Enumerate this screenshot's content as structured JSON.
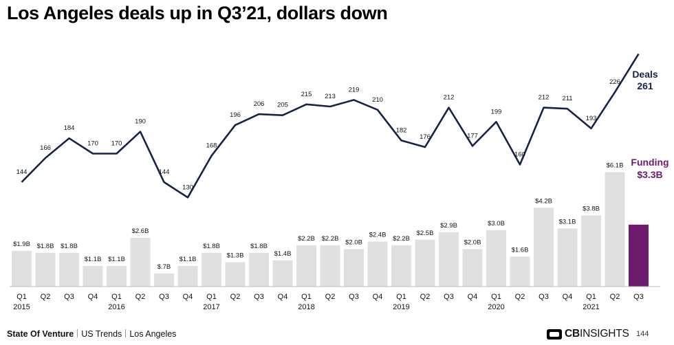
{
  "title": "Los Angeles deals up in Q3’21, dollars down",
  "footer": {
    "report": "State Of Venture",
    "section": "US Trends",
    "region": "Los Angeles"
  },
  "logo": {
    "icon": "cb-insights-logo-icon",
    "cb": "CB",
    "insights": "INSIGHTS"
  },
  "page_number": "144",
  "colors": {
    "bar": "#e0e0e0",
    "highlight_bar": "#6d1a6e",
    "line": "#15234b",
    "text": "#111111"
  },
  "chart_data": {
    "type": "bar+line",
    "categories": [
      "Q1",
      "Q2",
      "Q3",
      "Q4",
      "Q1",
      "Q2",
      "Q3",
      "Q4",
      "Q1",
      "Q2",
      "Q3",
      "Q4",
      "Q1",
      "Q2",
      "Q3",
      "Q4",
      "Q1",
      "Q2",
      "Q3",
      "Q4",
      "Q1",
      "Q2",
      "Q3",
      "Q4",
      "Q1",
      "Q2",
      "Q3"
    ],
    "years": [
      {
        "index": 0,
        "label": "2015"
      },
      {
        "index": 4,
        "label": "2016"
      },
      {
        "index": 8,
        "label": "2017"
      },
      {
        "index": 12,
        "label": "2018"
      },
      {
        "index": 16,
        "label": "2019"
      },
      {
        "index": 20,
        "label": "2020"
      },
      {
        "index": 24,
        "label": "2021"
      }
    ],
    "funding": {
      "values": [
        1.9,
        1.8,
        1.8,
        1.1,
        1.1,
        2.6,
        0.7,
        1.1,
        1.8,
        1.3,
        1.8,
        1.4,
        2.2,
        2.2,
        2.0,
        2.4,
        2.2,
        2.5,
        2.9,
        2.0,
        3.0,
        1.6,
        4.2,
        3.1,
        3.8,
        6.1,
        3.3
      ],
      "labels": [
        "$1.9B",
        "$1.8B",
        "$1.8B",
        "$1.1B",
        "$1.1B",
        "$2.6B",
        "$.7B",
        "$1.1B",
        "$1.8B",
        "$1.3B",
        "$1.8B",
        "$1.4B",
        "$2.2B",
        "$2.2B",
        "$2.0B",
        "$2.4B",
        "$2.2B",
        "$2.5B",
        "$2.9B",
        "$2.0B",
        "$3.0B",
        "$1.6B",
        "$4.2B",
        "$3.1B",
        "$3.8B",
        "$6.1B",
        ""
      ],
      "highlight_index": 26,
      "callout_name": "Funding",
      "callout_value": "$3.3B"
    },
    "deals": {
      "values": [
        144,
        166,
        184,
        170,
        170,
        190,
        144,
        130,
        168,
        196,
        206,
        205,
        215,
        213,
        219,
        210,
        182,
        176,
        212,
        177,
        199,
        160,
        212,
        211,
        193,
        226,
        261
      ],
      "callout_name": "Deals",
      "callout_value": "261"
    }
  }
}
